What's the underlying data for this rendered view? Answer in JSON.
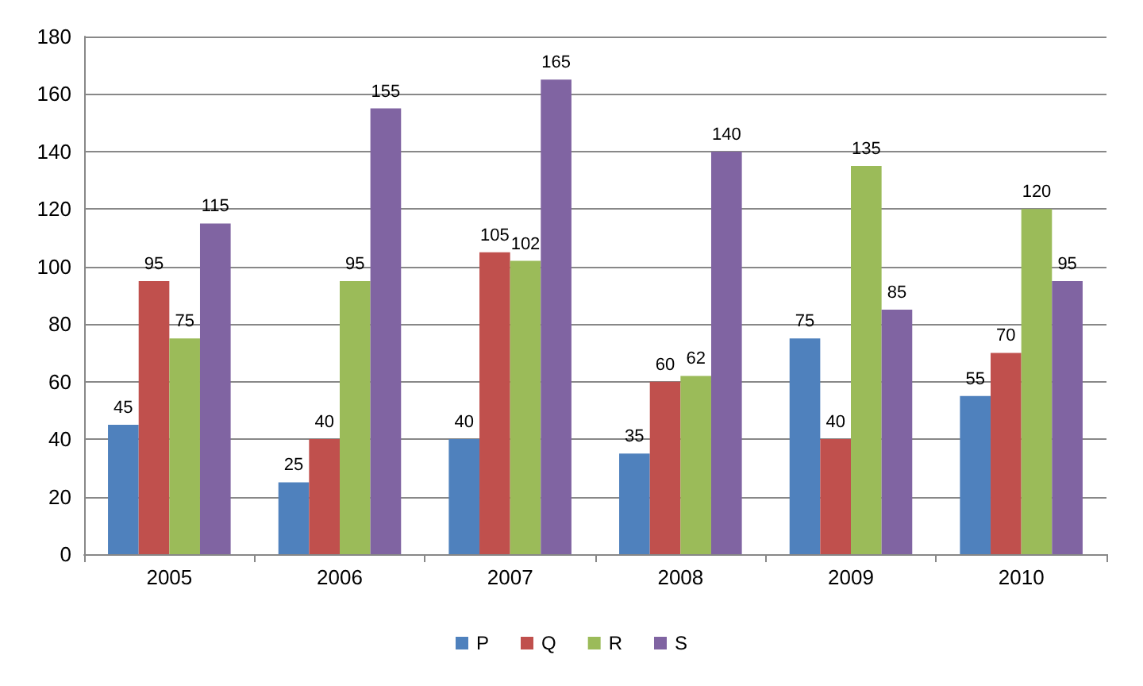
{
  "chart_data": {
    "type": "bar",
    "categories": [
      "2005",
      "2006",
      "2007",
      "2008",
      "2009",
      "2010"
    ],
    "series": [
      {
        "name": "P",
        "color": "#4f81bd",
        "values": [
          45,
          25,
          40,
          35,
          75,
          55
        ]
      },
      {
        "name": "Q",
        "color": "#c0504d",
        "values": [
          95,
          40,
          105,
          60,
          40,
          70
        ]
      },
      {
        "name": "R",
        "color": "#9bbb59",
        "values": [
          75,
          95,
          102,
          62,
          135,
          120
        ]
      },
      {
        "name": "S",
        "color": "#8064a2",
        "values": [
          115,
          155,
          165,
          140,
          85,
          95
        ]
      }
    ],
    "ylim": [
      0,
      180
    ],
    "yticks": [
      0,
      20,
      40,
      60,
      80,
      100,
      120,
      140,
      160,
      180
    ],
    "grid": "y",
    "legend": "bottom",
    "data_labels": true
  }
}
